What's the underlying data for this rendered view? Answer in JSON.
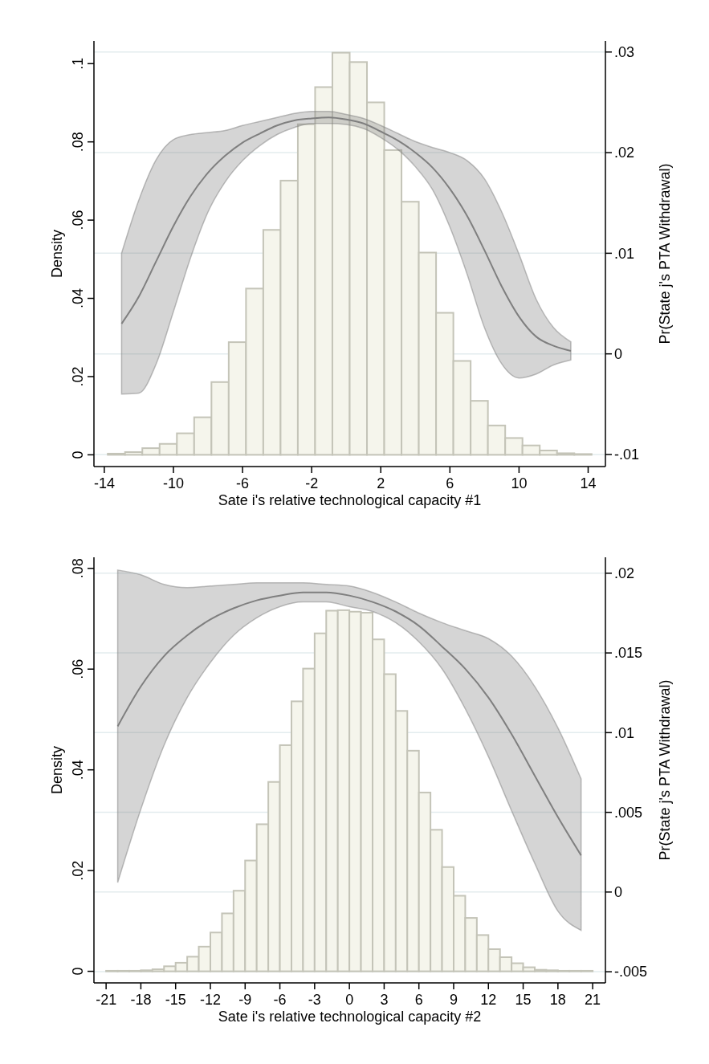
{
  "chart_data": [
    {
      "type": "histogram",
      "xlabel": "Sate i's relative technological capacity #1",
      "ylabel": "Density",
      "y2label": "Pr(State j's PTA Withdrawal)",
      "grid": "y2",
      "bins": [
        -13.8,
        -12.8,
        -11.8,
        -10.8,
        -9.8,
        -8.8,
        -7.8,
        -6.8,
        -5.8,
        -4.8,
        -3.8,
        -2.8,
        -1.8,
        -0.8,
        0.2,
        1.2,
        2.2,
        3.2,
        4.2,
        5.2,
        6.2,
        7.2,
        8.2,
        9.2,
        10.2,
        11.2,
        12.2,
        13.2,
        14.2
      ],
      "xlim": [
        -14.6,
        15
      ],
      "xticks": [
        -14,
        -10,
        -6,
        -2,
        2,
        6,
        10,
        14
      ],
      "ylim": [
        -0.003,
        0.1058
      ],
      "yticks": [
        {
          "value": 0,
          "label": "0"
        },
        {
          "value": 0.02,
          "label": ".02"
        },
        {
          "value": 0.04,
          "label": ".04"
        },
        {
          "value": 0.06,
          "label": ".06"
        },
        {
          "value": 0.08,
          "label": ".08"
        },
        {
          "value": 0.1,
          "label": ".1"
        }
      ],
      "y2lim": [
        -0.0112,
        0.0311
      ],
      "y2ticks": [
        {
          "value": -0.01,
          "label": "-.01"
        },
        {
          "value": 0,
          "label": "0"
        },
        {
          "value": 0.01,
          "label": ".01"
        },
        {
          "value": 0.02,
          "label": ".02"
        },
        {
          "value": 0.03,
          "label": ".03"
        }
      ],
      "series": [
        {
          "color": "#f5f5ec",
          "values": [
            0.0003,
            0.0007,
            0.0017,
            0.0028,
            0.0055,
            0.0096,
            0.0186,
            0.0288,
            0.0425,
            0.0575,
            0.0701,
            0.0845,
            0.094,
            0.1028,
            0.1004,
            0.0901,
            0.0779,
            0.0647,
            0.0517,
            0.0363,
            0.024,
            0.0138,
            0.0075,
            0.0043,
            0.0024,
            0.0011,
            0.0004,
            0.0002
          ]
        },
        {
          "type": "line",
          "axis": "y2",
          "color": "#7f7f7f",
          "x": [
            -13,
            -12,
            -11,
            -10,
            -9,
            -8,
            -7,
            -6,
            -5,
            -4,
            -3,
            -2,
            -1,
            0,
            1,
            2,
            3,
            4,
            5,
            6,
            7,
            8,
            9,
            10,
            11,
            12,
            13
          ],
          "values": [
            0.003,
            0.0057,
            0.0092,
            0.0127,
            0.0157,
            0.018,
            0.0197,
            0.021,
            0.0219,
            0.0227,
            0.0232,
            0.0234,
            0.0235,
            0.0233,
            0.0229,
            0.0221,
            0.0212,
            0.02,
            0.0185,
            0.0164,
            0.0137,
            0.0103,
            0.0067,
            0.0037,
            0.0017,
            0.0008,
            0.0003
          ],
          "upper": [
            0.01,
            0.0153,
            0.0193,
            0.0213,
            0.0218,
            0.022,
            0.0222,
            0.0227,
            0.0231,
            0.0235,
            0.0239,
            0.0241,
            0.0241,
            0.0238,
            0.0234,
            0.0227,
            0.0219,
            0.0211,
            0.0205,
            0.02,
            0.0192,
            0.0174,
            0.0141,
            0.0099,
            0.0054,
            0.0026,
            0.0012
          ],
          "lower": [
            -0.004,
            -0.0039,
            -0.001,
            0.0042,
            0.0096,
            0.0141,
            0.0171,
            0.0192,
            0.0207,
            0.0218,
            0.0225,
            0.0229,
            0.0229,
            0.0228,
            0.0224,
            0.0215,
            0.0203,
            0.0186,
            0.0163,
            0.0126,
            0.0079,
            0.0026,
            -0.001,
            -0.0024,
            -0.002,
            -0.0011,
            -0.0006
          ]
        }
      ]
    },
    {
      "type": "histogram",
      "xlabel": "Sate i's relative technological capacity #2",
      "ylabel": "Density",
      "y2label": "Pr(State j's PTA Withdrawal)",
      "grid": "y2",
      "bins": [
        -21,
        -20,
        -19,
        -18,
        -17,
        -16,
        -15,
        -14,
        -13,
        -12,
        -11,
        -10,
        -9,
        -8,
        -7,
        -6,
        -5,
        -4,
        -3,
        -2,
        -1,
        0,
        1,
        2,
        3,
        4,
        5,
        6,
        7,
        8,
        9,
        10,
        11,
        12,
        13,
        14,
        15,
        16,
        17,
        18,
        19,
        20,
        21
      ],
      "xlim": [
        -22.05,
        22.1
      ],
      "xticks": [
        -21,
        -18,
        -15,
        -12,
        -9,
        -6,
        -3,
        0,
        3,
        6,
        9,
        12,
        15,
        18,
        21
      ],
      "ylim": [
        -0.0023,
        0.0822
      ],
      "yticks": [
        {
          "value": 0,
          "label": "0"
        },
        {
          "value": 0.02,
          "label": ".02"
        },
        {
          "value": 0.04,
          "label": ".04"
        },
        {
          "value": 0.06,
          "label": ".06"
        },
        {
          "value": 0.08,
          "label": ".08"
        }
      ],
      "y2lim": [
        -0.0057,
        0.021
      ],
      "y2ticks": [
        {
          "value": -0.005,
          "label": "-.005"
        },
        {
          "value": 0,
          "label": "0"
        },
        {
          "value": 0.005,
          "label": ".005"
        },
        {
          "value": 0.01,
          "label": ".01"
        },
        {
          "value": 0.015,
          "label": ".015"
        },
        {
          "value": 0.02,
          "label": ".02"
        }
      ],
      "series": [
        {
          "color": "#f5f5ec",
          "values": [
            0.0001,
            0.0001,
            0.0001,
            0.0002,
            0.0004,
            0.001,
            0.0017,
            0.0029,
            0.0049,
            0.0077,
            0.0115,
            0.016,
            0.022,
            0.0292,
            0.0376,
            0.0449,
            0.0536,
            0.0601,
            0.0671,
            0.0716,
            0.0717,
            0.0714,
            0.0712,
            0.0659,
            0.059,
            0.0517,
            0.0438,
            0.0355,
            0.0281,
            0.0207,
            0.015,
            0.0106,
            0.0072,
            0.0044,
            0.0028,
            0.0016,
            0.0008,
            0.0003,
            0.0002,
            0.0001,
            0.0001,
            0.0001
          ]
        },
        {
          "type": "line",
          "axis": "y2",
          "color": "#7f7f7f",
          "x": [
            -20,
            -18,
            -16,
            -14,
            -12,
            -10,
            -8,
            -6,
            -4,
            -2,
            0,
            2,
            4,
            6,
            8,
            10,
            12,
            14,
            16,
            18,
            20
          ],
          "values": [
            0.0104,
            0.0129,
            0.0148,
            0.0161,
            0.0171,
            0.0178,
            0.0183,
            0.0186,
            0.0188,
            0.0188,
            0.0186,
            0.0182,
            0.0176,
            0.0167,
            0.0154,
            0.014,
            0.0122,
            0.0099,
            0.0073,
            0.0047,
            0.0023
          ],
          "upper": [
            0.0202,
            0.0199,
            0.0193,
            0.0191,
            0.0192,
            0.0193,
            0.0194,
            0.0194,
            0.0194,
            0.0193,
            0.0192,
            0.0188,
            0.0182,
            0.0175,
            0.0169,
            0.0164,
            0.0159,
            0.0148,
            0.0129,
            0.0103,
            0.0071
          ],
          "lower": [
            0.0006,
            0.0052,
            0.0092,
            0.0122,
            0.0144,
            0.0161,
            0.0172,
            0.0179,
            0.0182,
            0.0182,
            0.0179,
            0.0176,
            0.0169,
            0.0157,
            0.014,
            0.0115,
            0.0085,
            0.0051,
            0.0018,
            -0.0012,
            -0.0024
          ]
        }
      ]
    }
  ]
}
